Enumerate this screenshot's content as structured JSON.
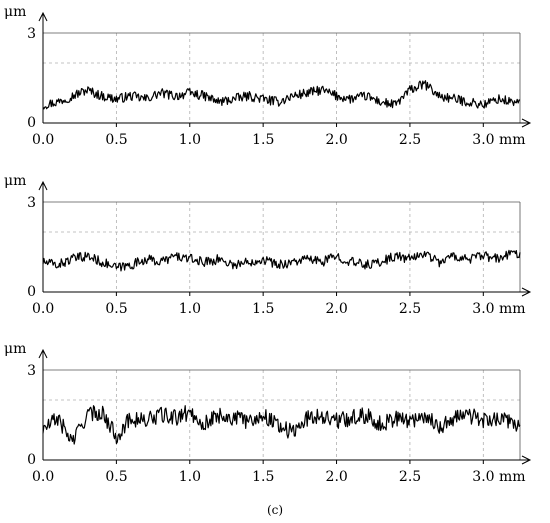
{
  "caption": "(c)",
  "chart_data": [
    {
      "type": "line",
      "x_unit": "mm",
      "y_unit": "μm",
      "xlim": [
        0,
        3.25
      ],
      "ylim": [
        0,
        3
      ],
      "x_ticks": [
        0.0,
        0.5,
        1.0,
        1.5,
        2.0,
        2.5,
        3.0
      ],
      "x_tick_labels": [
        "0.0",
        "0.5",
        "1.0",
        "1.5",
        "2.0",
        "2.5",
        "3.0 mm"
      ],
      "y_tick_labels": [
        "0",
        "3"
      ],
      "grid": true,
      "series": [
        {
          "x": [
            0.0,
            0.1,
            0.2,
            0.3,
            0.4,
            0.5,
            0.6,
            0.7,
            0.8,
            0.9,
            1.0,
            1.1,
            1.2,
            1.3,
            1.4,
            1.5,
            1.6,
            1.7,
            1.8,
            1.9,
            2.0,
            2.1,
            2.2,
            2.3,
            2.4,
            2.5,
            2.6,
            2.7,
            2.8,
            2.9,
            3.0,
            3.1,
            3.2
          ],
          "y": [
            0.6,
            0.7,
            0.9,
            1.1,
            0.9,
            0.8,
            0.9,
            0.8,
            1.0,
            0.9,
            1.0,
            0.9,
            0.7,
            0.8,
            0.9,
            0.8,
            0.7,
            0.9,
            1.0,
            1.1,
            0.9,
            0.8,
            0.9,
            0.7,
            0.6,
            1.1,
            1.3,
            0.9,
            0.8,
            0.7,
            0.6,
            0.8,
            0.7
          ]
        }
      ]
    },
    {
      "type": "line",
      "x_unit": "mm",
      "y_unit": "μm",
      "xlim": [
        0,
        3.25
      ],
      "ylim": [
        0,
        3
      ],
      "x_ticks": [
        0.0,
        0.5,
        1.0,
        1.5,
        2.0,
        2.5,
        3.0
      ],
      "x_tick_labels": [
        "0.0",
        "0.5",
        "1.0",
        "1.5",
        "2.0",
        "2.5",
        "3.0 mm"
      ],
      "y_tick_labels": [
        "0",
        "3"
      ],
      "grid": true,
      "series": [
        {
          "x": [
            0.0,
            0.1,
            0.2,
            0.3,
            0.4,
            0.5,
            0.6,
            0.7,
            0.8,
            0.9,
            1.0,
            1.1,
            1.2,
            1.3,
            1.4,
            1.5,
            1.6,
            1.7,
            1.8,
            1.9,
            2.0,
            2.1,
            2.2,
            2.3,
            2.4,
            2.5,
            2.6,
            2.7,
            2.8,
            2.9,
            3.0,
            3.1,
            3.2
          ],
          "y": [
            1.0,
            0.9,
            1.1,
            1.2,
            1.0,
            0.8,
            0.9,
            1.1,
            1.0,
            1.2,
            1.1,
            1.0,
            1.1,
            0.9,
            1.0,
            1.1,
            0.9,
            1.0,
            1.1,
            1.0,
            1.2,
            1.0,
            0.9,
            1.0,
            1.2,
            1.1,
            1.3,
            1.0,
            1.2,
            1.1,
            1.2,
            1.1,
            1.3
          ]
        }
      ]
    },
    {
      "type": "line",
      "x_unit": "mm",
      "y_unit": "μm",
      "xlim": [
        0,
        3.25
      ],
      "ylim": [
        0,
        3
      ],
      "x_ticks": [
        0.0,
        0.5,
        1.0,
        1.5,
        2.0,
        2.5,
        3.0
      ],
      "x_tick_labels": [
        "0.0",
        "0.5",
        "1.0",
        "1.5",
        "2.0",
        "2.5",
        "3.0 mm"
      ],
      "y_tick_labels": [
        "0",
        "3"
      ],
      "grid": true,
      "series": [
        {
          "x": [
            0.0,
            0.1,
            0.2,
            0.3,
            0.4,
            0.5,
            0.6,
            0.7,
            0.8,
            0.9,
            1.0,
            1.1,
            1.2,
            1.3,
            1.4,
            1.5,
            1.6,
            1.7,
            1.8,
            1.9,
            2.0,
            2.1,
            2.2,
            2.3,
            2.4,
            2.5,
            2.6,
            2.7,
            2.8,
            2.9,
            3.0,
            3.1,
            3.2
          ],
          "y": [
            1.0,
            1.4,
            0.6,
            1.5,
            1.6,
            0.8,
            1.4,
            1.3,
            1.5,
            1.4,
            1.6,
            1.2,
            1.5,
            1.4,
            1.3,
            1.5,
            1.2,
            0.9,
            1.4,
            1.5,
            1.3,
            1.4,
            1.5,
            1.2,
            1.4,
            1.3,
            1.5,
            1.1,
            1.4,
            1.5,
            1.3,
            1.4,
            1.2
          ]
        }
      ]
    }
  ]
}
